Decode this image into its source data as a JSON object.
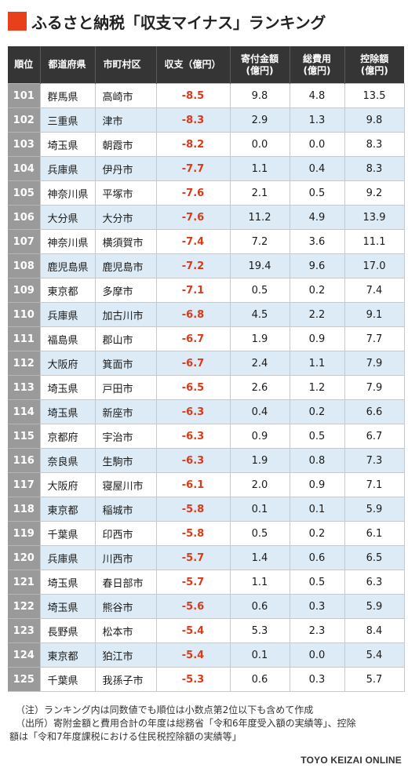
{
  "title": "ふるさと納税「収支マイナス」ランキング",
  "header": {
    "rank": "順位",
    "prefecture": "都道府県",
    "city": "市町村区",
    "balance": "収支（億円）",
    "donation_line1": "寄付金額",
    "donation_line2": "(億円)",
    "cost_line1": "総費用",
    "cost_line2": "(億円)",
    "deduction_line1": "控除額",
    "deduction_line2": "(億円)"
  },
  "rows": [
    {
      "rank": "101",
      "prefecture": "群馬県",
      "city": "高崎市",
      "balance": "-8.5",
      "donation": "9.8",
      "cost": "4.8",
      "deduction": "13.5"
    },
    {
      "rank": "102",
      "prefecture": "三重県",
      "city": "津市",
      "balance": "-8.3",
      "donation": "2.9",
      "cost": "1.3",
      "deduction": "9.8"
    },
    {
      "rank": "103",
      "prefecture": "埼玉県",
      "city": "朝霞市",
      "balance": "-8.2",
      "donation": "0.0",
      "cost": "0.0",
      "deduction": "8.3"
    },
    {
      "rank": "104",
      "prefecture": "兵庫県",
      "city": "伊丹市",
      "balance": "-7.7",
      "donation": "1.1",
      "cost": "0.4",
      "deduction": "8.3"
    },
    {
      "rank": "105",
      "prefecture": "神奈川県",
      "city": "平塚市",
      "balance": "-7.6",
      "donation": "2.1",
      "cost": "0.5",
      "deduction": "9.2"
    },
    {
      "rank": "106",
      "prefecture": "大分県",
      "city": "大分市",
      "balance": "-7.6",
      "donation": "11.2",
      "cost": "4.9",
      "deduction": "13.9"
    },
    {
      "rank": "107",
      "prefecture": "神奈川県",
      "city": "横須賀市",
      "balance": "-7.4",
      "donation": "7.2",
      "cost": "3.6",
      "deduction": "11.1"
    },
    {
      "rank": "108",
      "prefecture": "鹿児島県",
      "city": "鹿児島市",
      "balance": "-7.2",
      "donation": "19.4",
      "cost": "9.6",
      "deduction": "17.0"
    },
    {
      "rank": "109",
      "prefecture": "東京都",
      "city": "多摩市",
      "balance": "-7.1",
      "donation": "0.5",
      "cost": "0.2",
      "deduction": "7.4"
    },
    {
      "rank": "110",
      "prefecture": "兵庫県",
      "city": "加古川市",
      "balance": "-6.8",
      "donation": "4.5",
      "cost": "2.2",
      "deduction": "9.1"
    },
    {
      "rank": "111",
      "prefecture": "福島県",
      "city": "郡山市",
      "balance": "-6.7",
      "donation": "1.9",
      "cost": "0.9",
      "deduction": "7.7"
    },
    {
      "rank": "112",
      "prefecture": "大阪府",
      "city": "箕面市",
      "balance": "-6.7",
      "donation": "2.4",
      "cost": "1.1",
      "deduction": "7.9"
    },
    {
      "rank": "113",
      "prefecture": "埼玉県",
      "city": "戸田市",
      "balance": "-6.5",
      "donation": "2.6",
      "cost": "1.2",
      "deduction": "7.9"
    },
    {
      "rank": "114",
      "prefecture": "埼玉県",
      "city": "新座市",
      "balance": "-6.3",
      "donation": "0.4",
      "cost": "0.2",
      "deduction": "6.6"
    },
    {
      "rank": "115",
      "prefecture": "京都府",
      "city": "宇治市",
      "balance": "-6.3",
      "donation": "0.9",
      "cost": "0.5",
      "deduction": "6.7"
    },
    {
      "rank": "116",
      "prefecture": "奈良県",
      "city": "生駒市",
      "balance": "-6.3",
      "donation": "1.9",
      "cost": "0.8",
      "deduction": "7.3"
    },
    {
      "rank": "117",
      "prefecture": "大阪府",
      "city": "寝屋川市",
      "balance": "-6.1",
      "donation": "2.0",
      "cost": "0.9",
      "deduction": "7.1"
    },
    {
      "rank": "118",
      "prefecture": "東京都",
      "city": "稲城市",
      "balance": "-5.8",
      "donation": "0.1",
      "cost": "0.1",
      "deduction": "5.9"
    },
    {
      "rank": "119",
      "prefecture": "千葉県",
      "city": "印西市",
      "balance": "-5.8",
      "donation": "0.5",
      "cost": "0.2",
      "deduction": "6.1"
    },
    {
      "rank": "120",
      "prefecture": "兵庫県",
      "city": "川西市",
      "balance": "-5.7",
      "donation": "1.4",
      "cost": "0.6",
      "deduction": "6.5"
    },
    {
      "rank": "121",
      "prefecture": "埼玉県",
      "city": "春日部市",
      "balance": "-5.7",
      "donation": "1.1",
      "cost": "0.5",
      "deduction": "6.3"
    },
    {
      "rank": "122",
      "prefecture": "埼玉県",
      "city": "熊谷市",
      "balance": "-5.6",
      "donation": "0.6",
      "cost": "0.3",
      "deduction": "5.9"
    },
    {
      "rank": "123",
      "prefecture": "長野県",
      "city": "松本市",
      "balance": "-5.4",
      "donation": "5.3",
      "cost": "2.3",
      "deduction": "8.4"
    },
    {
      "rank": "124",
      "prefecture": "東京都",
      "city": "狛江市",
      "balance": "-5.4",
      "donation": "0.1",
      "cost": "0.0",
      "deduction": "5.4"
    },
    {
      "rank": "125",
      "prefecture": "千葉県",
      "city": "我孫子市",
      "balance": "-5.3",
      "donation": "0.6",
      "cost": "0.3",
      "deduction": "5.7"
    }
  ],
  "notes": {
    "note1": "（注）ランキング内は同数値でも順位は小数点第2位以下も含めて作成",
    "note2": "（出所）寄附金額と費用合計の年度は総務省「令和6年度受入額の実績等」、控除",
    "note3": "額は「令和7年度課税における住民税控除額の実績等」"
  },
  "source": "TOYO KEIZAI ONLINE",
  "colors": {
    "accent": "#e8401a",
    "header_bg": "#353535",
    "rank_bg": "#9a9a9a",
    "stripe": "#dcebf5",
    "negative": "#d93a1a"
  }
}
